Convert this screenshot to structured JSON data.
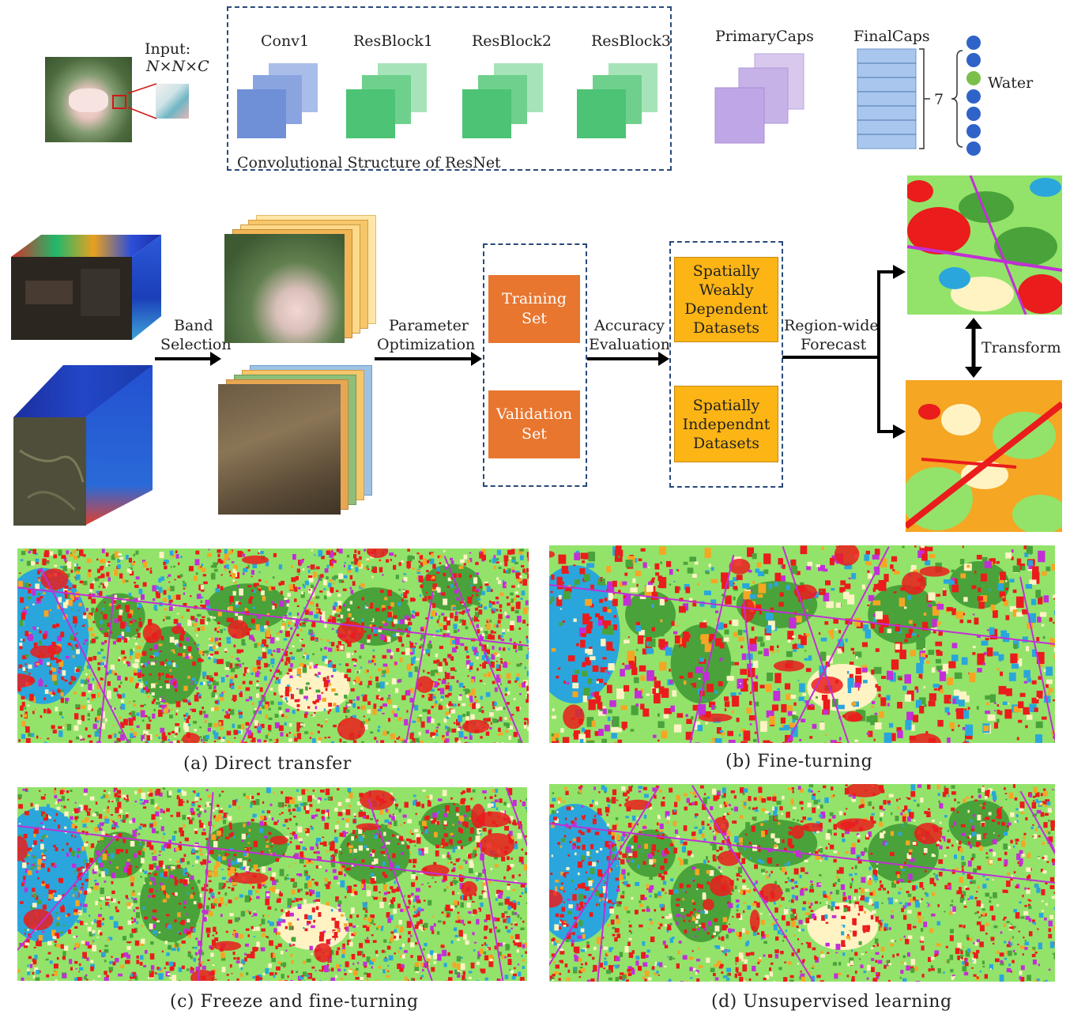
{
  "network": {
    "input_label": "Input:",
    "input_dims": "N×N×C",
    "conv_group_caption": "Convolutional Structure of ResNet",
    "layers": [
      "Conv1",
      "ResBlock1",
      "ResBlock2",
      "ResBlock3"
    ],
    "primary_caps": "PrimaryCaps",
    "final_caps": "FinalCaps",
    "brace_count": "7",
    "water_label": "Water"
  },
  "flow": {
    "band_selection": [
      "Band",
      "Selection"
    ],
    "parameter_optimization": [
      "Parameter",
      "Optimization"
    ],
    "training_set": [
      "Training",
      "Set"
    ],
    "validation_set": [
      "Validation",
      "Set"
    ],
    "accuracy_evaluation": [
      "Accuracy",
      "Evaluation"
    ],
    "weakly_dependent": [
      "Spatially",
      "Weakly",
      "Dependent",
      "Datasets"
    ],
    "independent": [
      "Spatially",
      "Independnt",
      "Datasets"
    ],
    "region_forecast": [
      "Region-wide",
      "Forecast"
    ],
    "transform": "Transform"
  },
  "captions": {
    "a": "(a)   Direct transfer",
    "b": "(b)    Fine-turning",
    "c": "(c)   Freeze and fine-turning",
    "d": "(d)   Unsupervised learning"
  },
  "colors": {
    "light_green": "#93e36a",
    "forest": "#4aa23a",
    "red": "#ea1c1c",
    "magenta": "#c22fd6",
    "cyan": "#2aa6dc",
    "orange": "#f5a623",
    "cream": "#fff3c4",
    "box_orange": "#e8762f",
    "box_yellow": "#fdb515"
  }
}
